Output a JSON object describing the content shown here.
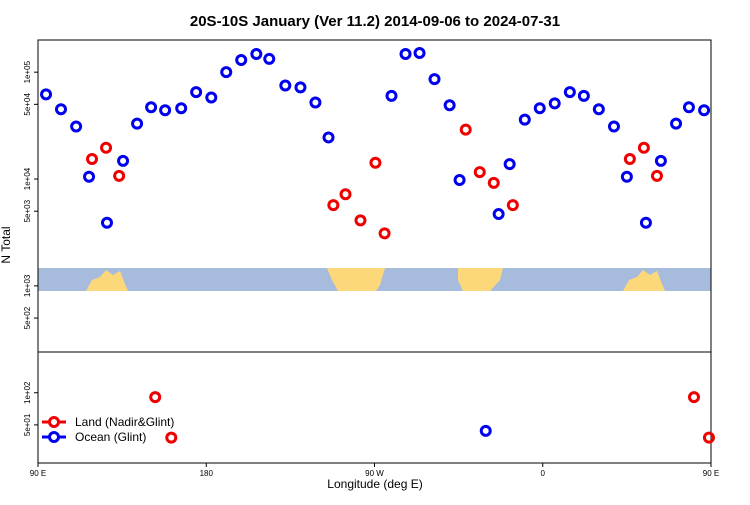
{
  "chart_data": {
    "type": "scatter",
    "title": "20S-10S January (Ver 11.2)   2014-09-06 to 2024-07-31",
    "x_label": "Longitude (deg E)",
    "y_label": "N Total",
    "log_y": true,
    "legend": "bottom-left",
    "xlim": [
      90,
      450
    ],
    "ylim": [
      22,
      200000
    ],
    "xticks": [
      {
        "value": 90,
        "label": "90 E"
      },
      {
        "value": 180,
        "label": "180"
      },
      {
        "value": 270,
        "label": "90 W"
      },
      {
        "value": 360,
        "label": "0"
      },
      {
        "value": 450,
        "label": "90 E"
      }
    ],
    "yticks": [
      {
        "value": 50,
        "label": "5e+01"
      },
      {
        "value": 100,
        "label": "1e+02"
      },
      {
        "value": 500,
        "label": "5e+02"
      },
      {
        "value": 1000,
        "label": "1e+03"
      },
      {
        "value": 5000,
        "label": "5e+03"
      },
      {
        "value": 10000,
        "label": "1e+04"
      },
      {
        "value": 50000,
        "label": "5e+04"
      },
      {
        "value": 100000,
        "label": "1e+05"
      }
    ],
    "series": [
      {
        "name": "Land (Nadir&Glint)",
        "color": "#ee0000",
        "x": [
          118.9,
          126.4,
          133.4,
          152.7,
          161.3,
          248.0,
          254.5,
          262.5,
          270.5,
          275.4,
          318.8,
          326.3,
          333.8,
          344.0,
          406.6,
          414.1,
          421.1,
          440.9,
          448.9
        ],
        "values": [
          15400,
          19600,
          10700,
          91,
          38,
          5700,
          7200,
          4100,
          14200,
          3100,
          29000,
          11600,
          9200,
          5700,
          15400,
          19600,
          10700,
          91,
          38
        ]
      },
      {
        "name": "Ocean (Glint)",
        "color": "#0000ee",
        "x": [
          94.3,
          102.3,
          110.4,
          117.3,
          126.9,
          135.5,
          143.0,
          150.5,
          158.0,
          166.6,
          174.6,
          182.7,
          190.7,
          198.7,
          206.8,
          213.7,
          222.3,
          230.4,
          238.4,
          245.4,
          279.1,
          286.6,
          294.1,
          302.1,
          310.2,
          315.5,
          329.5,
          336.4,
          342.3,
          350.4,
          358.4,
          366.4,
          374.5,
          382.0,
          390.0,
          398.1,
          405.0,
          415.2,
          423.2,
          431.3,
          438.2,
          446.3
        ],
        "values": [
          62000,
          45000,
          31000,
          10500,
          3900,
          14800,
          33000,
          47000,
          44000,
          46000,
          65000,
          58000,
          100000,
          130000,
          148000,
          133000,
          75000,
          72000,
          52000,
          24500,
          60000,
          148000,
          151000,
          86000,
          49000,
          9800,
          44,
          4700,
          13800,
          36000,
          46000,
          51000,
          65000,
          60000,
          45000,
          31000,
          10500,
          3900,
          14800,
          33000,
          47000,
          44000
        ]
      }
    ]
  }
}
